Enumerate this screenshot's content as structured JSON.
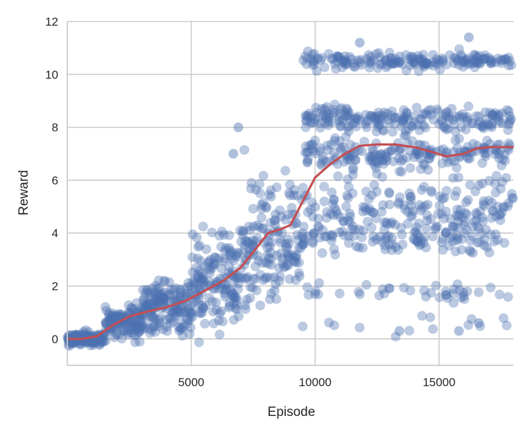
{
  "chart_data": {
    "type": "scatter",
    "title": "",
    "xlabel": "Episode",
    "ylabel": "Reward",
    "xlim": [
      0,
      18000
    ],
    "ylim": [
      -1,
      12
    ],
    "x_ticks": [
      5000,
      10000,
      15000
    ],
    "x_tick_labels": [
      "5000",
      "10000",
      "15000"
    ],
    "y_ticks": [
      0,
      2,
      4,
      6,
      8,
      10,
      12
    ],
    "y_tick_labels": [
      "0",
      "2",
      "4",
      "6",
      "8",
      "10",
      "12"
    ],
    "grid": true,
    "legend": "none",
    "colors": {
      "scatter": "#4c72b0",
      "trend": "#c44e52",
      "grid": "#cccccc",
      "background": "#ffffff"
    },
    "series": [
      {
        "kind": "scatter",
        "note_points": "approximately 1500 episodes; point cloud summarized by clusters",
        "clusters": [
          {
            "x_range": [
              0,
              1500
            ],
            "y_center": 0.0,
            "y_spread": 0.2,
            "count": 120
          },
          {
            "x_range": [
              1500,
              3000
            ],
            "y_center": 0.6,
            "y_spread": 0.5,
            "count": 120
          },
          {
            "x_range": [
              3000,
              5000
            ],
            "y_center": 1.2,
            "y_spread": 0.9,
            "count": 160
          },
          {
            "x_range": [
              5000,
              7000
            ],
            "y_center": 2.2,
            "y_spread": 1.4,
            "count": 150
          },
          {
            "x_range": [
              7000,
              9500
            ],
            "y_center": 3.8,
            "y_spread": 1.9,
            "count": 160
          },
          {
            "x_range": [
              9500,
              18000
            ],
            "y_center": 10.5,
            "y_spread": 0.25,
            "count": 180
          },
          {
            "x_range": [
              9500,
              18000
            ],
            "y_center": 8.3,
            "y_spread": 0.4,
            "count": 200
          },
          {
            "x_range": [
              9500,
              18000
            ],
            "y_center": 7.0,
            "y_spread": 0.5,
            "count": 180
          },
          {
            "x_range": [
              9500,
              18000
            ],
            "y_center": 5.0,
            "y_spread": 1.2,
            "count": 200
          },
          {
            "x_range": [
              9500,
              18000
            ],
            "y_center": 3.8,
            "y_spread": 0.5,
            "count": 90
          },
          {
            "x_range": [
              9500,
              18000
            ],
            "y_center": 1.8,
            "y_spread": 0.3,
            "count": 40
          },
          {
            "x_range": [
              9500,
              18000
            ],
            "y_center": 0.6,
            "y_spread": 0.4,
            "count": 14
          }
        ],
        "outliers": [
          [
            6900,
            8.0
          ],
          [
            6700,
            7.0
          ],
          [
            10100,
            10.6
          ],
          [
            11800,
            11.2
          ],
          [
            16200,
            11.4
          ],
          [
            15800,
            0.3
          ],
          [
            16600,
            0.6
          ],
          [
            13400,
            0.3
          ]
        ]
      },
      {
        "kind": "line",
        "x": [
          0,
          600,
          1200,
          1800,
          2500,
          3300,
          4000,
          4800,
          5500,
          6300,
          7000,
          7600,
          8100,
          8600,
          9000,
          9500,
          10000,
          10600,
          11200,
          11800,
          12500,
          13200,
          14000,
          14600,
          15300,
          16000,
          16500,
          17100,
          18000
        ],
        "y": [
          0.0,
          0.0,
          0.1,
          0.5,
          0.85,
          1.05,
          1.2,
          1.45,
          1.8,
          2.2,
          2.7,
          3.4,
          4.0,
          4.15,
          4.3,
          5.2,
          6.1,
          6.6,
          7.0,
          7.3,
          7.35,
          7.35,
          7.25,
          7.1,
          6.9,
          7.0,
          7.2,
          7.25,
          7.25
        ]
      }
    ]
  }
}
